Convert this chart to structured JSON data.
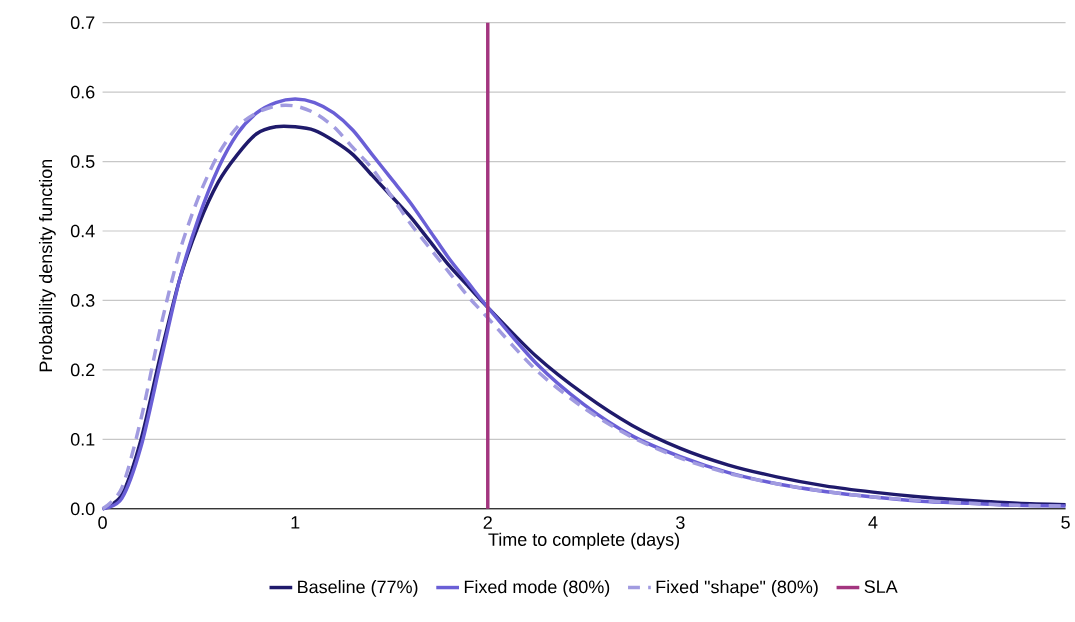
{
  "chart_data": {
    "type": "line",
    "xlabel": "Time to complete (days)",
    "ylabel": "Probability density function",
    "x": [
      0,
      0.1,
      0.2,
      0.3,
      0.4,
      0.5,
      0.6,
      0.7,
      0.8,
      0.9,
      1.0,
      1.1,
      1.2,
      1.3,
      1.4,
      1.5,
      1.6,
      1.7,
      1.8,
      1.9,
      2.0,
      2.25,
      2.5,
      2.75,
      3.0,
      3.25,
      3.5,
      3.75,
      4.0,
      4.25,
      4.5,
      4.75,
      5.0
    ],
    "series": [
      {
        "name": "Baseline (77%)",
        "color": "#1f1a6b",
        "line_style": "solid",
        "values": [
          0,
          0.02,
          0.1,
          0.22,
          0.33,
          0.41,
          0.47,
          0.51,
          0.54,
          0.55,
          0.55,
          0.545,
          0.53,
          0.51,
          0.48,
          0.45,
          0.42,
          0.385,
          0.35,
          0.32,
          0.29,
          0.22,
          0.165,
          0.12,
          0.087,
          0.063,
          0.046,
          0.033,
          0.024,
          0.017,
          0.012,
          0.008,
          0.006
        ]
      },
      {
        "name": "Fixed mode (80%)",
        "color": "#6a5fd6",
        "line_style": "solid",
        "values": [
          0,
          0.015,
          0.09,
          0.21,
          0.33,
          0.42,
          0.49,
          0.54,
          0.57,
          0.585,
          0.59,
          0.585,
          0.57,
          0.545,
          0.51,
          0.475,
          0.44,
          0.4,
          0.36,
          0.325,
          0.29,
          0.21,
          0.15,
          0.105,
          0.075,
          0.052,
          0.036,
          0.025,
          0.017,
          0.011,
          0.008,
          0.005,
          0.004
        ]
      },
      {
        "name": "Fixed \"shape\" (80%)",
        "color": "#a19be0",
        "line_style": "dashed",
        "values": [
          0,
          0.03,
          0.13,
          0.26,
          0.37,
          0.45,
          0.51,
          0.55,
          0.57,
          0.58,
          0.58,
          0.57,
          0.55,
          0.52,
          0.49,
          0.45,
          0.41,
          0.375,
          0.34,
          0.305,
          0.275,
          0.2,
          0.145,
          0.103,
          0.073,
          0.051,
          0.036,
          0.025,
          0.017,
          0.012,
          0.008,
          0.005,
          0.004
        ]
      }
    ],
    "ref_lines": [
      {
        "axis": "x",
        "value": 2,
        "label": "SLA",
        "color": "#a3357f",
        "line_style": "solid"
      }
    ],
    "xlim": [
      0,
      5
    ],
    "ylim": [
      0,
      0.7
    ],
    "xticks": [
      0,
      1,
      2,
      3,
      4,
      5
    ],
    "yticks": [
      {
        "value": 0,
        "label": "0.0"
      },
      {
        "value": 0.1,
        "label": "0.1"
      },
      {
        "value": 0.2,
        "label": "0.2"
      },
      {
        "value": 0.3,
        "label": "0.3"
      },
      {
        "value": 0.4,
        "label": "0.4"
      },
      {
        "value": 0.5,
        "label": "0.5"
      },
      {
        "value": 0.6,
        "label": "0.6"
      },
      {
        "value": 0.7,
        "label": "0.7"
      }
    ],
    "grid": "y",
    "legend": "bottom",
    "marker": "none"
  }
}
